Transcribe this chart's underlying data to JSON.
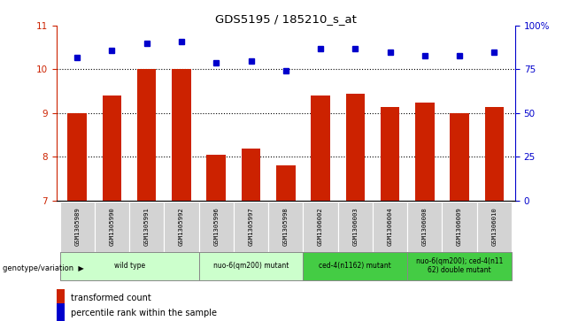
{
  "title": "GDS5195 / 185210_s_at",
  "samples": [
    "GSM1305989",
    "GSM1305990",
    "GSM1305991",
    "GSM1305992",
    "GSM1305996",
    "GSM1305997",
    "GSM1305998",
    "GSM1306002",
    "GSM1306003",
    "GSM1306004",
    "GSM1306008",
    "GSM1306009",
    "GSM1306010"
  ],
  "bar_values": [
    9.0,
    9.4,
    10.0,
    10.0,
    8.05,
    8.2,
    7.8,
    9.4,
    9.45,
    9.15,
    9.25,
    9.0,
    9.15
  ],
  "percentile_values": [
    82,
    86,
    90,
    91,
    79,
    80,
    74,
    87,
    87,
    85,
    83,
    83,
    85
  ],
  "bar_color": "#cc2200",
  "percentile_color": "#0000cc",
  "ylim_left": [
    7,
    11
  ],
  "ylim_right": [
    0,
    100
  ],
  "yticks_left": [
    7,
    8,
    9,
    10,
    11
  ],
  "yticks_right": [
    0,
    25,
    50,
    75,
    100
  ],
  "ytick_labels_right": [
    "0",
    "25",
    "50",
    "75",
    "100%"
  ],
  "groups": [
    {
      "label": "wild type",
      "indices": [
        0,
        1,
        2,
        3
      ],
      "color": "#ccffcc"
    },
    {
      "label": "nuo-6(qm200) mutant",
      "indices": [
        4,
        5,
        6
      ],
      "color": "#ccffcc"
    },
    {
      "label": "ced-4(n1162) mutant",
      "indices": [
        7,
        8,
        9
      ],
      "color": "#44cc44"
    },
    {
      "label": "nuo-6(qm200); ced-4(n11\n62) double mutant",
      "indices": [
        10,
        11,
        12
      ],
      "color": "#44cc44"
    }
  ],
  "genotype_label": "genotype/variation",
  "legend_bar_label": "transformed count",
  "legend_pct_label": "percentile rank within the sample",
  "bar_bottom": 7,
  "label_area_color": "#d3d3d3"
}
